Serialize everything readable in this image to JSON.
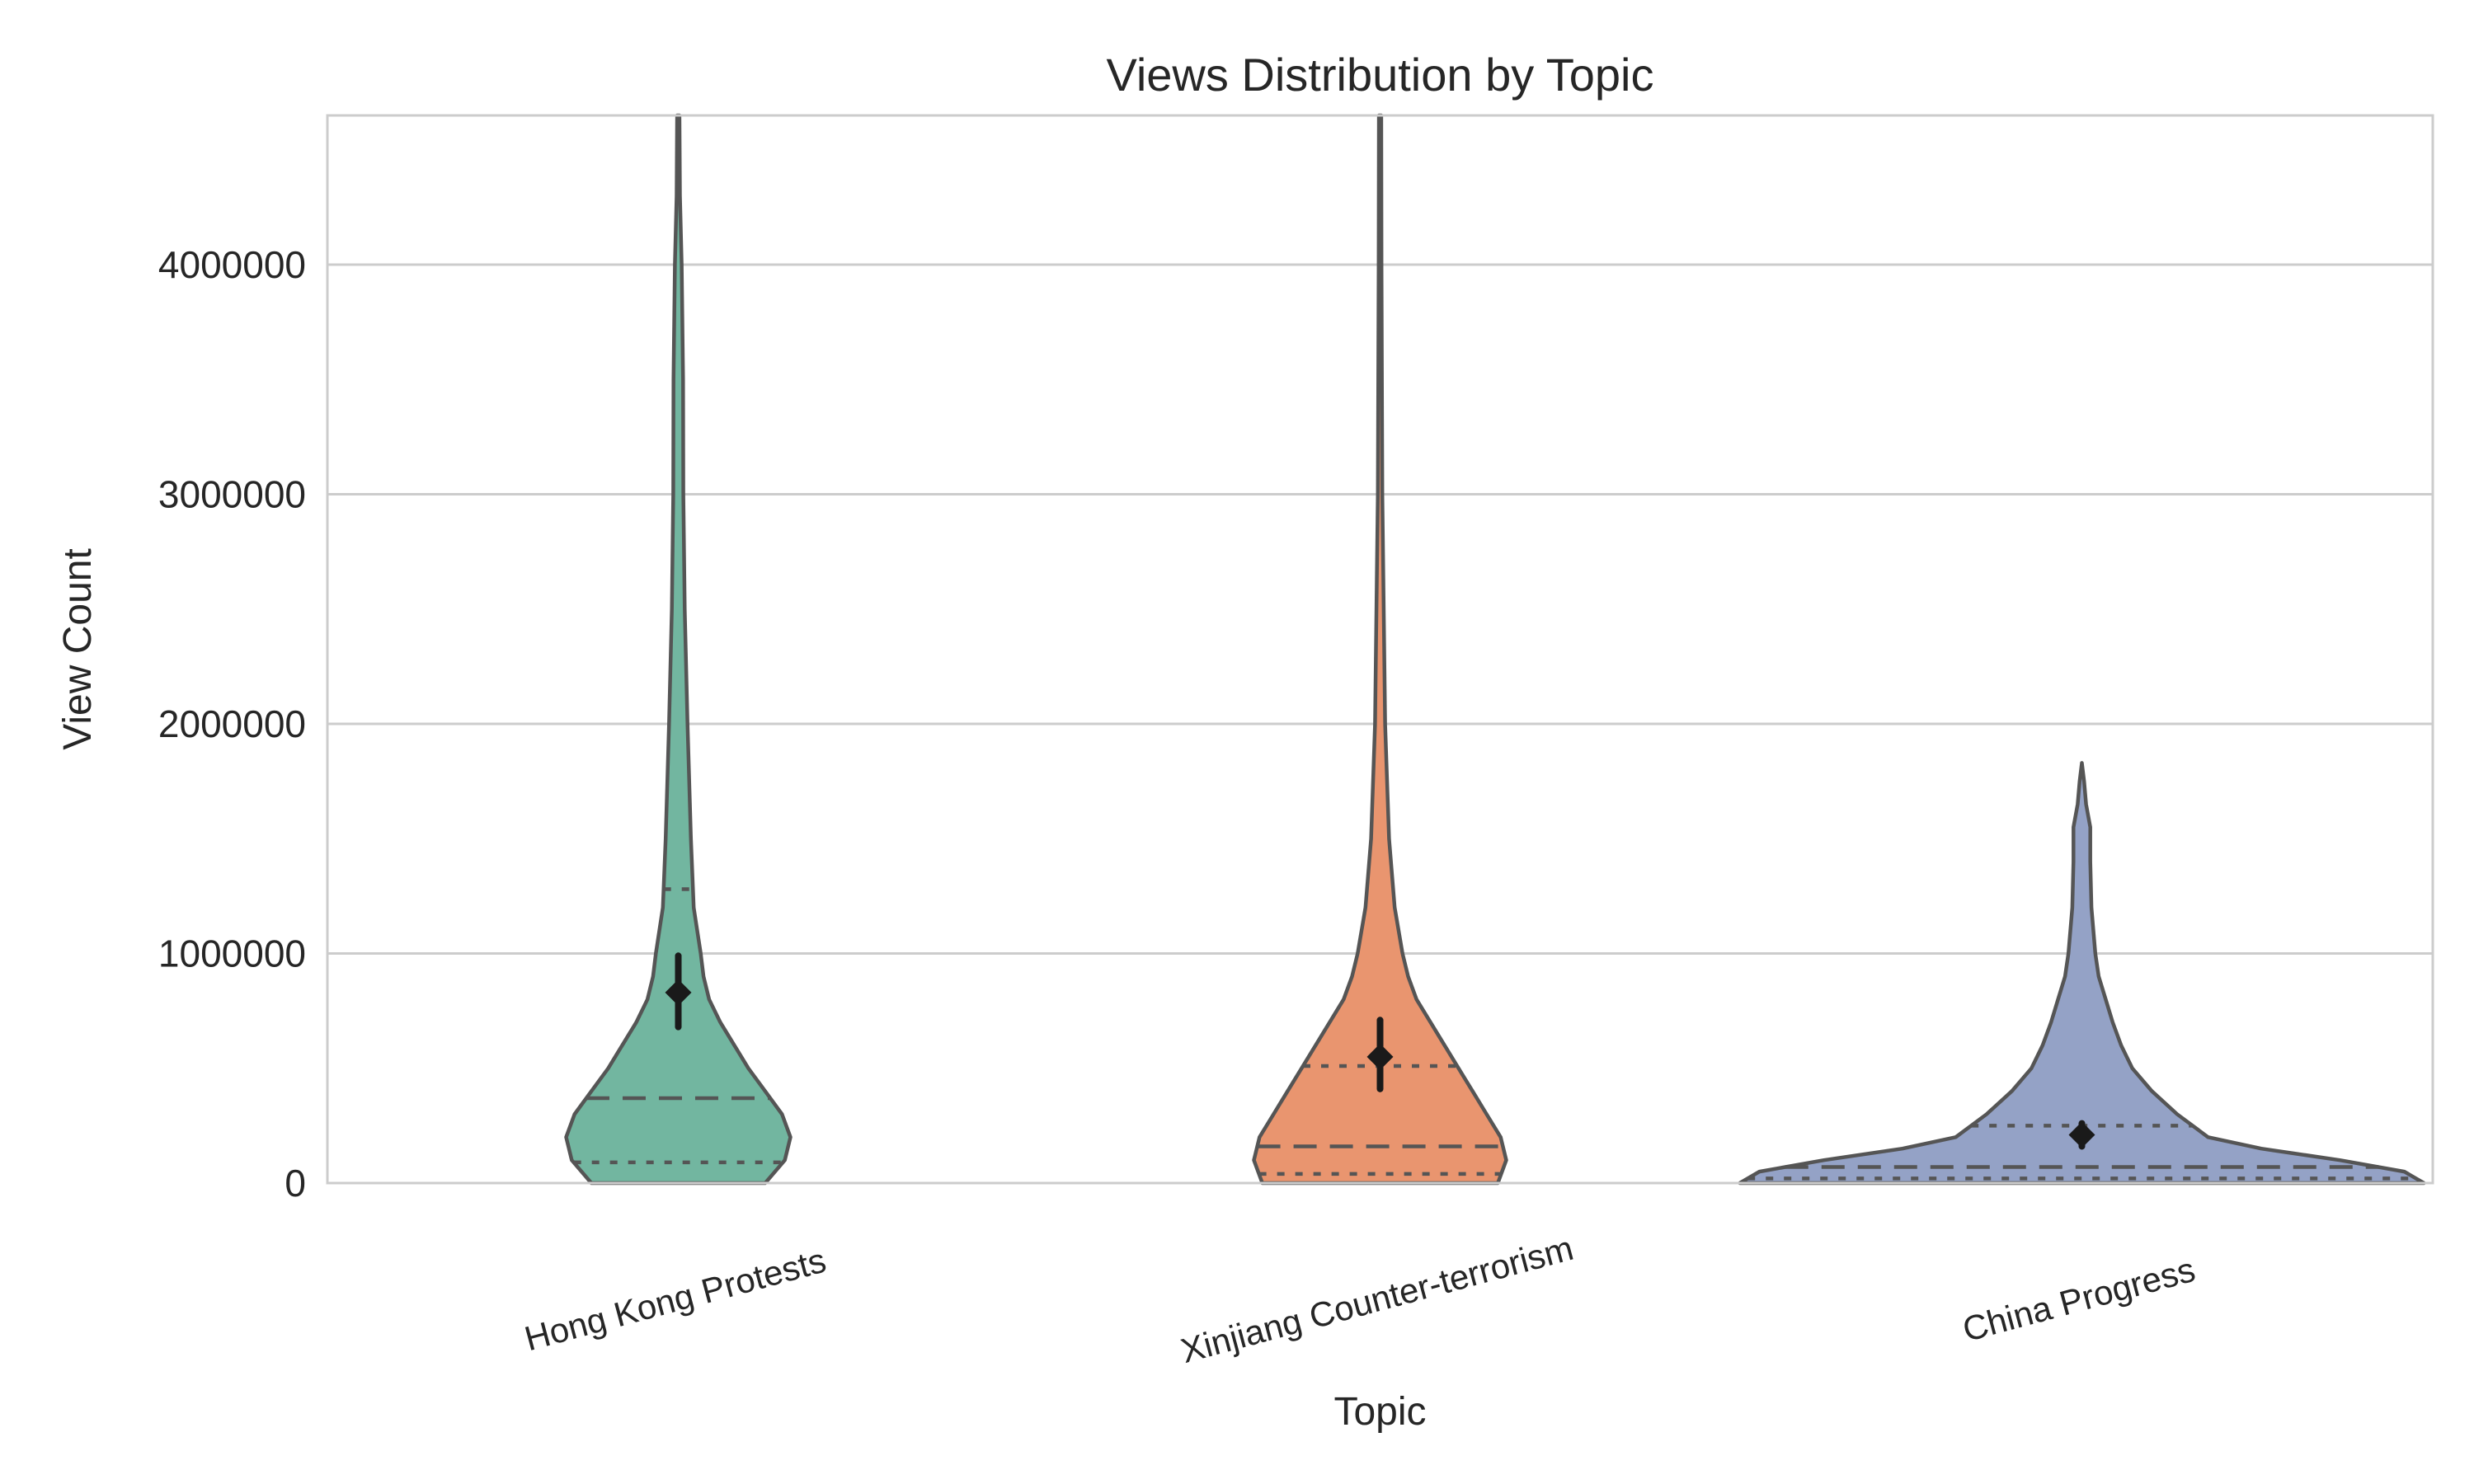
{
  "chart_data": {
    "type": "violin",
    "title": "Views Distribution by Topic",
    "xlabel": "Topic",
    "ylabel": "View Count",
    "ylim": [
      0,
      4650000
    ],
    "yticks": [
      0,
      1000000,
      2000000,
      3000000,
      4000000
    ],
    "ytick_labels": [
      "0",
      "1000000",
      "2000000",
      "3000000",
      "4000000"
    ],
    "grid": true,
    "categories": [
      "Hong Kong Protests",
      "Xinjiang Counter-terrorism",
      "China Progress"
    ],
    "colors": [
      "#72b6a0",
      "#e9956f",
      "#94a2c6"
    ],
    "outline_color": "#555555",
    "series": [
      {
        "category": "Hong Kong Protests",
        "q1": 90000,
        "median": 370000,
        "q3": 1280000,
        "mean": 830000,
        "ci": [
          680000,
          990000
        ],
        "max_shown": 4650000,
        "density": [
          [
            0,
            0.31
          ],
          [
            100000,
            0.38
          ],
          [
            200000,
            0.4
          ],
          [
            300000,
            0.37
          ],
          [
            400000,
            0.31
          ],
          [
            500000,
            0.25
          ],
          [
            600000,
            0.2
          ],
          [
            700000,
            0.15
          ],
          [
            800000,
            0.11
          ],
          [
            900000,
            0.09
          ],
          [
            1000000,
            0.08
          ],
          [
            1200000,
            0.055
          ],
          [
            1500000,
            0.045
          ],
          [
            2000000,
            0.033
          ],
          [
            2500000,
            0.023
          ],
          [
            3000000,
            0.018
          ],
          [
            3500000,
            0.017
          ],
          [
            4000000,
            0.012
          ],
          [
            4300000,
            0.006
          ],
          [
            4650000,
            0.004
          ]
        ]
      },
      {
        "category": "Xinjiang Counter-terrorism",
        "q1": 40000,
        "median": 160000,
        "q3": 510000,
        "mean": 550000,
        "ci": [
          410000,
          710000
        ],
        "max_shown": 4650000,
        "density": [
          [
            0,
            0.42
          ],
          [
            100000,
            0.45
          ],
          [
            200000,
            0.43
          ],
          [
            300000,
            0.38
          ],
          [
            400000,
            0.33
          ],
          [
            500000,
            0.28
          ],
          [
            600000,
            0.23
          ],
          [
            700000,
            0.18
          ],
          [
            800000,
            0.13
          ],
          [
            900000,
            0.1
          ],
          [
            1000000,
            0.08
          ],
          [
            1200000,
            0.052
          ],
          [
            1500000,
            0.032
          ],
          [
            2000000,
            0.018
          ],
          [
            3000000,
            0.008
          ],
          [
            4000000,
            0.005
          ],
          [
            4650000,
            0.004
          ]
        ]
      },
      {
        "category": "China Progress",
        "q1": 20000,
        "median": 70000,
        "q3": 250000,
        "mean": 210000,
        "ci": [
          160000,
          260000
        ],
        "max_shown": 1830000,
        "density": [
          [
            0,
            1.22
          ],
          [
            50000,
            1.15
          ],
          [
            100000,
            0.92
          ],
          [
            150000,
            0.64
          ],
          [
            200000,
            0.45
          ],
          [
            300000,
            0.34
          ],
          [
            400000,
            0.25
          ],
          [
            500000,
            0.18
          ],
          [
            600000,
            0.14
          ],
          [
            700000,
            0.11
          ],
          [
            800000,
            0.085
          ],
          [
            900000,
            0.06
          ],
          [
            1000000,
            0.048
          ],
          [
            1200000,
            0.034
          ],
          [
            1400000,
            0.03
          ],
          [
            1550000,
            0.03
          ],
          [
            1650000,
            0.015
          ],
          [
            1750000,
            0.008
          ],
          [
            1830000,
            0.0
          ]
        ]
      }
    ]
  }
}
